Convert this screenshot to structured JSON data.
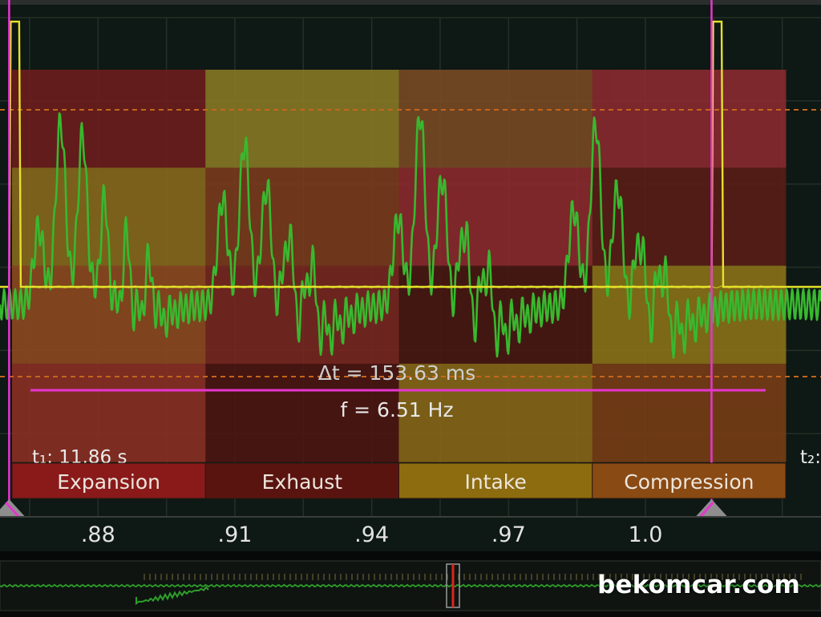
{
  "chart_data": {
    "type": "line",
    "x_ticks": [
      ".88",
      ".91",
      ".94",
      ".97",
      "1.0"
    ],
    "xlim": [
      0.8585,
      1.0385
    ],
    "cursor_t1": 0.8605,
    "cursor_t2": 1.0145,
    "phases": [
      {
        "label": "Expansion",
        "color": "#8a1a1a",
        "cells": [
          "#6e1d1d",
          "#8a6a1c",
          "#8f4a20",
          "#8d2f24"
        ]
      },
      {
        "label": "Exhaust",
        "color": "#5a1410",
        "cells": [
          "#8a7a26",
          "#7c3b1c",
          "#7a2720",
          "#4d1512"
        ]
      },
      {
        "label": "Intake",
        "color": "#8d6c10",
        "cells": [
          "#7b4b24",
          "#8e2a2e",
          "#4a1712",
          "#8a6818"
        ]
      },
      {
        "label": "Compression",
        "color": "#8a4a14",
        "cells": [
          "#8c2a30",
          "#5a1d16",
          "#8c7418",
          "#7a3d16"
        ]
      }
    ],
    "series": [
      {
        "color": "#39b82f",
        "bursts": [
          {
            "t": 0.867,
            "a": [
              0.4,
              0.95,
              0.9,
              0.6,
              0.45,
              0.3
            ]
          },
          {
            "t": 0.9073,
            "a": [
              0.55,
              0.85,
              0.65,
              0.45,
              0.35
            ]
          },
          {
            "t": 0.9458,
            "a": [
              0.45,
              1.0,
              0.7,
              0.5,
              0.35
            ]
          },
          {
            "t": 0.9843,
            "a": [
              0.5,
              0.95,
              0.65,
              0.45,
              0.35
            ]
          }
        ]
      },
      {
        "color": "#e4e22a",
        "square": {
          "high": 1.0,
          "low": 0.5,
          "rises": [
            0.8605,
            1.0145
          ],
          "width": 0.0015
        }
      }
    ]
  },
  "cursors": {
    "delta_t": "Δt = 153.63 ms",
    "frequency": "f = 6.51 Hz",
    "t1": "t₁: 11.86 s",
    "t2": "t₂:"
  },
  "overview": {
    "trace_color": "#2f9e2a",
    "marker_color": "#d8261e"
  },
  "watermark": "bekomcar.com",
  "colors": {
    "cursor": "#e636d0",
    "threshold": "#c4661c",
    "grid": "#233028"
  }
}
